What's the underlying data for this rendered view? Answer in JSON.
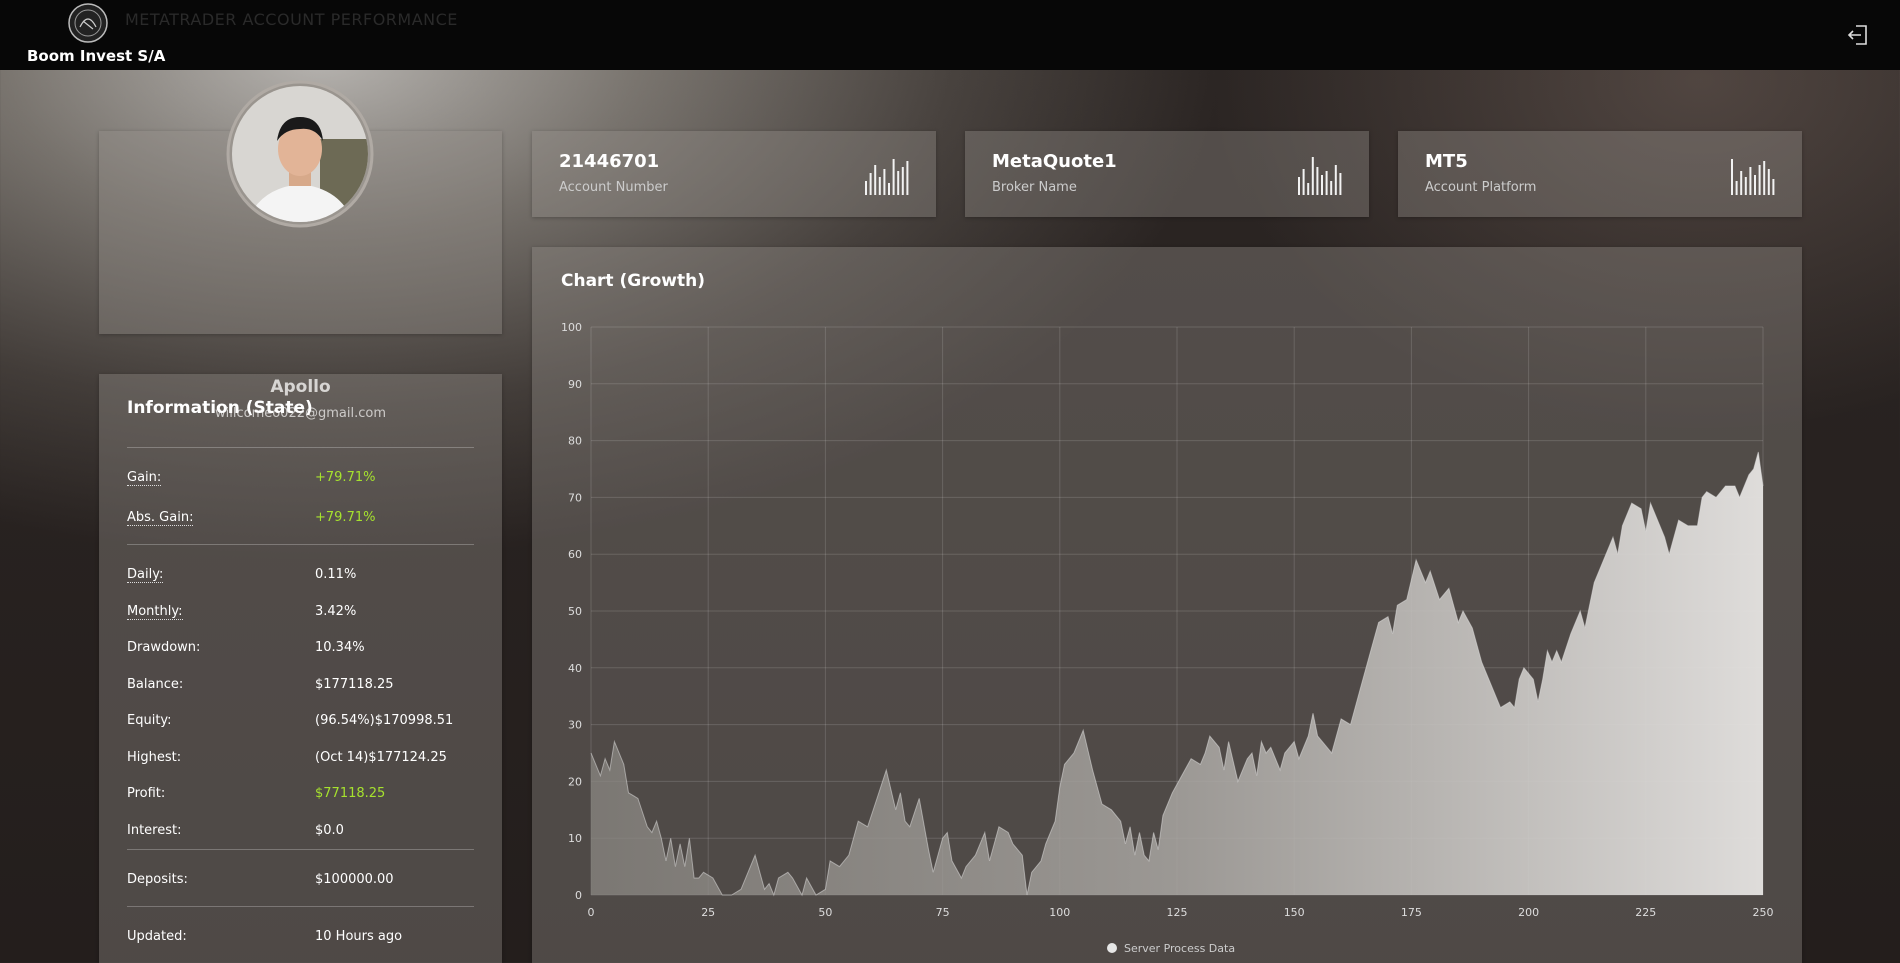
{
  "header": {
    "title": "METATRADER ACCOUNT PERFORMANCE",
    "brand": "Boom Invest S/A"
  },
  "profile": {
    "name": "Apollo",
    "email": "willcomeo022@gmail.com"
  },
  "cards": [
    {
      "value": "21446701",
      "label": "Account Number"
    },
    {
      "value": "MetaQuote1",
      "label": "Broker Name"
    },
    {
      "value": "MT5",
      "label": "Account Platform"
    }
  ],
  "info": {
    "title": "Information (State)",
    "sections": [
      [
        {
          "label": "Gain:",
          "value": "+79.71%",
          "color": "#a6e22e"
        },
        {
          "label": "Abs. Gain:",
          "value": "+79.71%",
          "color": "#a6e22e"
        }
      ],
      [
        {
          "label": "Daily:",
          "value": "0.11%"
        },
        {
          "label": "Monthly:",
          "value": "3.42%"
        },
        {
          "label": "Drawdown:",
          "value": "10.34%"
        },
        {
          "label": "Balance:",
          "value": "$177118.25"
        },
        {
          "label": "Equity:",
          "value": "(96.54%)$170998.51"
        },
        {
          "label": "Highest:",
          "value": "(Oct 14)$177124.25"
        },
        {
          "label": "Profit:",
          "value": "$77118.25",
          "color": "#a6e22e"
        },
        {
          "label": "Interest:",
          "value": "$0.0"
        }
      ],
      [
        {
          "label": "Deposits:",
          "value": "$100000.00"
        }
      ],
      [
        {
          "label": "Updated:",
          "value": "10 Hours ago"
        }
      ]
    ]
  },
  "chart_data": {
    "type": "area",
    "title": "Chart (Growth)",
    "xlim": [
      0,
      250
    ],
    "ylim": [
      0,
      100
    ],
    "xticks": [
      0,
      25,
      50,
      75,
      100,
      125,
      150,
      175,
      200,
      225,
      250
    ],
    "yticks": [
      0,
      10,
      20,
      30,
      40,
      50,
      60,
      70,
      80,
      90,
      100
    ],
    "grid": true,
    "series": [
      {
        "name": "Server Process Data",
        "color": "#e6e6e6",
        "x": [
          0,
          2,
          3,
          4,
          5,
          7,
          8,
          10,
          12,
          13,
          14,
          15,
          16,
          17,
          18,
          19,
          20,
          21,
          22,
          23,
          24,
          26,
          28,
          30,
          32,
          35,
          37,
          38,
          39,
          40,
          42,
          43,
          45,
          46,
          48,
          50,
          51,
          53,
          55,
          57,
          59,
          61,
          63,
          65,
          66,
          67,
          68,
          70,
          72,
          73,
          75,
          76,
          77,
          79,
          80,
          82,
          84,
          85,
          87,
          89,
          90,
          92,
          93,
          94,
          96,
          97,
          99,
          100,
          101,
          103,
          105,
          107,
          109,
          111,
          113,
          114,
          115,
          116,
          117,
          118,
          119,
          120,
          121,
          122,
          124,
          126,
          128,
          130,
          131,
          132,
          134,
          135,
          136,
          138,
          140,
          141,
          142,
          143,
          144,
          145,
          147,
          148,
          150,
          151,
          153,
          154,
          155,
          156,
          158,
          160,
          162,
          164,
          166,
          168,
          170,
          171,
          172,
          174,
          176,
          178,
          179,
          181,
          183,
          185,
          186,
          188,
          190,
          192,
          193,
          194,
          196,
          197,
          198,
          199,
          201,
          202,
          203,
          204,
          205,
          206,
          207,
          209,
          211,
          212,
          214,
          216,
          218,
          219,
          220,
          222,
          224,
          225,
          226,
          228,
          229,
          230,
          232,
          234,
          236,
          237,
          238,
          240,
          242,
          244,
          245,
          247,
          248,
          249,
          250
        ],
        "values": [
          25,
          21,
          24,
          22,
          27,
          23,
          18,
          17,
          12,
          11,
          13,
          10,
          6,
          10,
          5,
          9,
          5,
          10,
          3,
          3,
          4,
          3,
          0,
          0,
          1,
          7,
          1,
          2,
          0,
          3,
          4,
          3,
          0,
          3,
          0,
          1,
          6,
          5,
          7,
          13,
          12,
          17,
          22,
          15,
          18,
          13,
          12,
          17,
          8,
          4,
          10,
          11,
          6,
          3,
          5,
          7,
          11,
          6,
          12,
          11,
          9,
          7,
          0,
          4,
          6,
          9,
          13,
          19,
          23,
          25,
          29,
          22,
          16,
          15,
          13,
          9,
          12,
          7,
          11,
          7,
          6,
          11,
          8,
          14,
          18,
          21,
          24,
          23,
          25,
          28,
          26,
          22,
          27,
          20,
          24,
          25,
          21,
          27,
          25,
          26,
          22,
          25,
          27,
          24,
          28,
          32,
          28,
          27,
          25,
          31,
          30,
          36,
          42,
          48,
          49,
          46,
          51,
          52,
          59,
          55,
          57,
          52,
          54,
          48,
          50,
          47,
          41,
          37,
          35,
          33,
          34,
          33,
          38,
          40,
          38,
          34,
          38,
          43,
          41,
          43,
          41,
          46,
          50,
          47,
          55,
          59,
          63,
          60,
          65,
          69,
          68,
          64,
          69,
          65,
          63,
          60,
          66,
          65,
          65,
          70,
          71,
          70,
          72,
          72,
          70,
          74,
          75,
          78,
          72
        ]
      }
    ]
  }
}
